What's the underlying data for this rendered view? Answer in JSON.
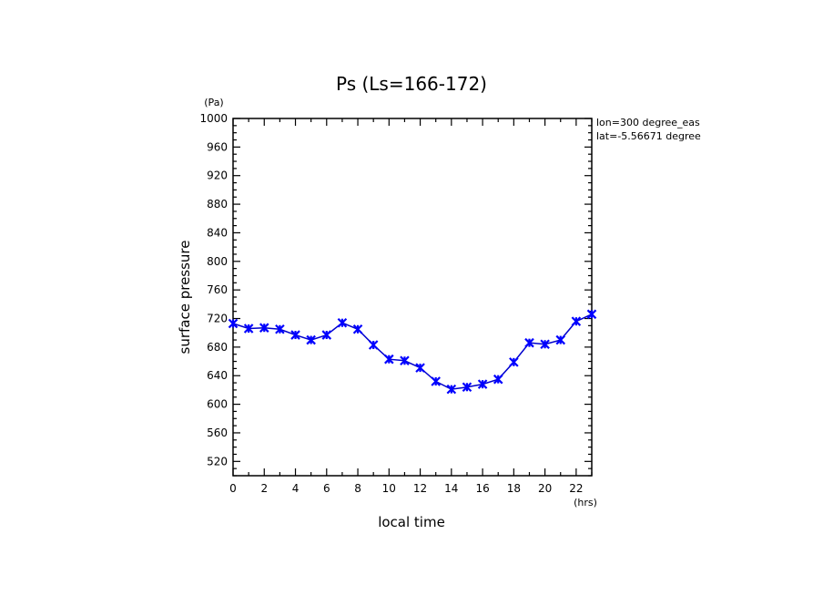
{
  "chart_data": {
    "type": "line",
    "title": "Ps (Ls=166-172)",
    "xlabel": "local time",
    "ylabel": "surface pressure",
    "x_unit": "(hrs)",
    "y_unit": "(Pa)",
    "xlim": [
      0,
      23
    ],
    "ylim": [
      500,
      1000
    ],
    "x_ticks": [
      0,
      2,
      4,
      6,
      8,
      10,
      12,
      14,
      16,
      18,
      20,
      22
    ],
    "y_ticks": [
      520,
      560,
      600,
      640,
      680,
      720,
      760,
      800,
      840,
      880,
      920,
      960,
      1000
    ],
    "annotations": [
      "lon=300 degree_eas",
      "lat=-5.56671 degree"
    ],
    "grid": false,
    "line_color": "#0000cc",
    "marker_color": "#0000ff",
    "x": [
      0,
      1,
      2,
      3,
      4,
      5,
      6,
      7,
      8,
      9,
      10,
      11,
      12,
      13,
      14,
      15,
      16,
      17,
      18,
      19,
      20,
      21,
      22,
      23
    ],
    "values": [
      713,
      706,
      707,
      705,
      697,
      690,
      697,
      714,
      705,
      683,
      663,
      661,
      651,
      632,
      621,
      624,
      628,
      635,
      659,
      686,
      684,
      690,
      716,
      726
    ]
  }
}
